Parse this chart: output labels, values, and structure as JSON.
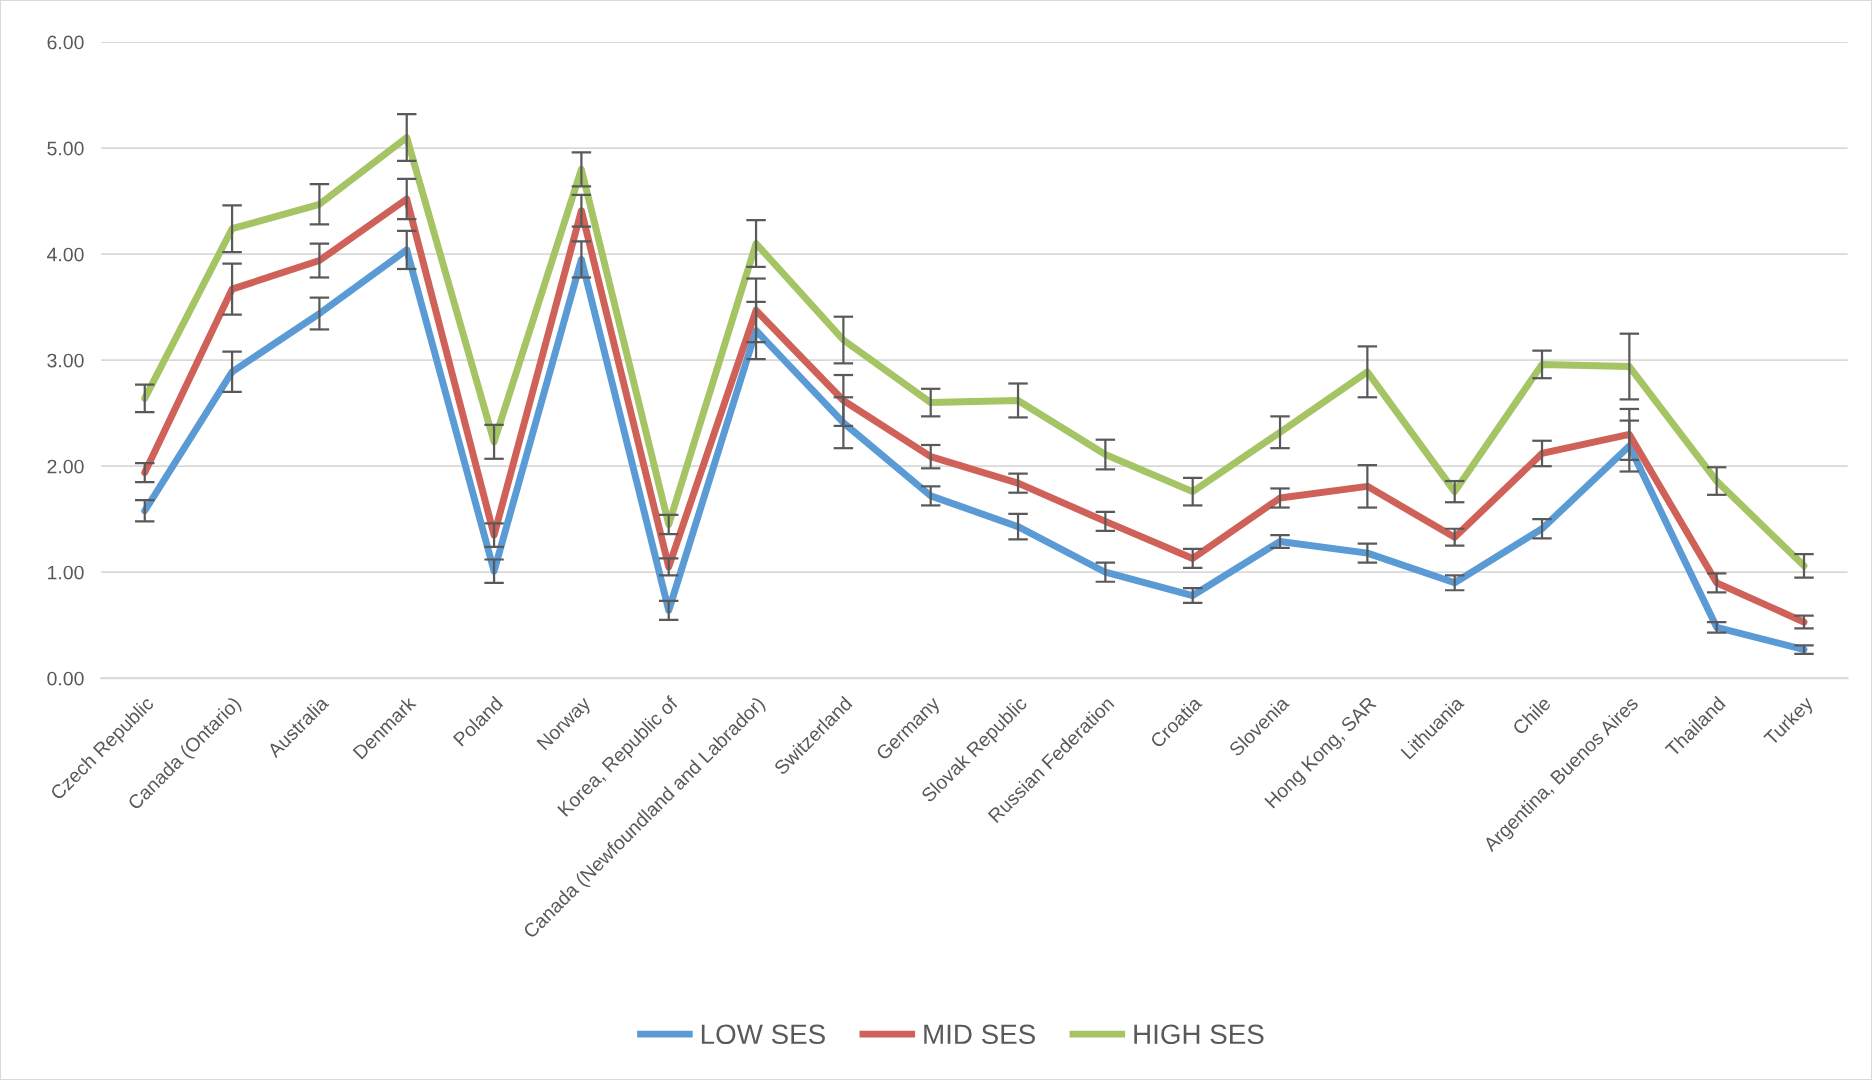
{
  "chart_data": {
    "type": "line",
    "categories": [
      "Czech Republic",
      "Canada (Ontario)",
      "Australia",
      "Denmark",
      "Poland",
      "Norway",
      "Korea, Republic of",
      "Canada (Newfoundland and Labrador)",
      "Switzerland",
      "Germany",
      "Slovak Republic",
      "Russian Federation",
      "Croatia",
      "Slovenia",
      "Hong Kong, SAR",
      "Lithuania",
      "Chile",
      "Argentina, Buenos Aires",
      "Thailand",
      "Turkey"
    ],
    "series": [
      {
        "name": "LOW SES",
        "color": "#5b9bd5",
        "values": [
          1.58,
          2.89,
          3.44,
          4.04,
          1.01,
          3.95,
          0.64,
          3.28,
          2.41,
          1.72,
          1.43,
          1.0,
          0.78,
          1.29,
          1.18,
          0.9,
          1.41,
          2.19,
          0.48,
          0.27
        ],
        "errors": [
          0.1,
          0.19,
          0.15,
          0.18,
          0.11,
          0.17,
          0.09,
          0.27,
          0.24,
          0.09,
          0.12,
          0.09,
          0.07,
          0.06,
          0.09,
          0.07,
          0.09,
          0.24,
          0.05,
          0.04
        ]
      },
      {
        "name": "MID SES",
        "color": "#cf6158",
        "values": [
          1.94,
          3.67,
          3.94,
          4.52,
          1.35,
          4.41,
          1.05,
          3.47,
          2.62,
          2.09,
          1.84,
          1.48,
          1.13,
          1.7,
          1.81,
          1.33,
          2.12,
          2.3,
          0.9,
          0.53
        ],
        "errors": [
          0.09,
          0.24,
          0.16,
          0.19,
          0.11,
          0.15,
          0.08,
          0.3,
          0.24,
          0.11,
          0.09,
          0.09,
          0.09,
          0.09,
          0.2,
          0.08,
          0.12,
          0.24,
          0.09,
          0.06
        ]
      },
      {
        "name": "HIGH SES",
        "color": "#a5c463",
        "values": [
          2.64,
          4.24,
          4.47,
          5.1,
          2.23,
          4.8,
          1.45,
          4.1,
          3.19,
          2.6,
          2.62,
          2.11,
          1.76,
          2.32,
          2.89,
          1.76,
          2.96,
          2.94,
          1.86,
          1.06
        ],
        "errors": [
          0.13,
          0.22,
          0.19,
          0.22,
          0.16,
          0.16,
          0.09,
          0.22,
          0.22,
          0.13,
          0.16,
          0.14,
          0.13,
          0.15,
          0.24,
          0.1,
          0.13,
          0.31,
          0.13,
          0.11
        ]
      }
    ],
    "ylim": [
      0,
      6
    ],
    "yticks": [
      {
        "value": 0,
        "label": "0.00"
      },
      {
        "value": 1,
        "label": "1.00"
      },
      {
        "value": 2,
        "label": "2.00"
      },
      {
        "value": 3,
        "label": "3.00"
      },
      {
        "value": 4,
        "label": "4.00"
      },
      {
        "value": 5,
        "label": "5.00"
      },
      {
        "value": 6,
        "label": "6.00"
      }
    ],
    "grid": "y",
    "legend": "bottom",
    "marker": "none",
    "line_style": "solid"
  }
}
